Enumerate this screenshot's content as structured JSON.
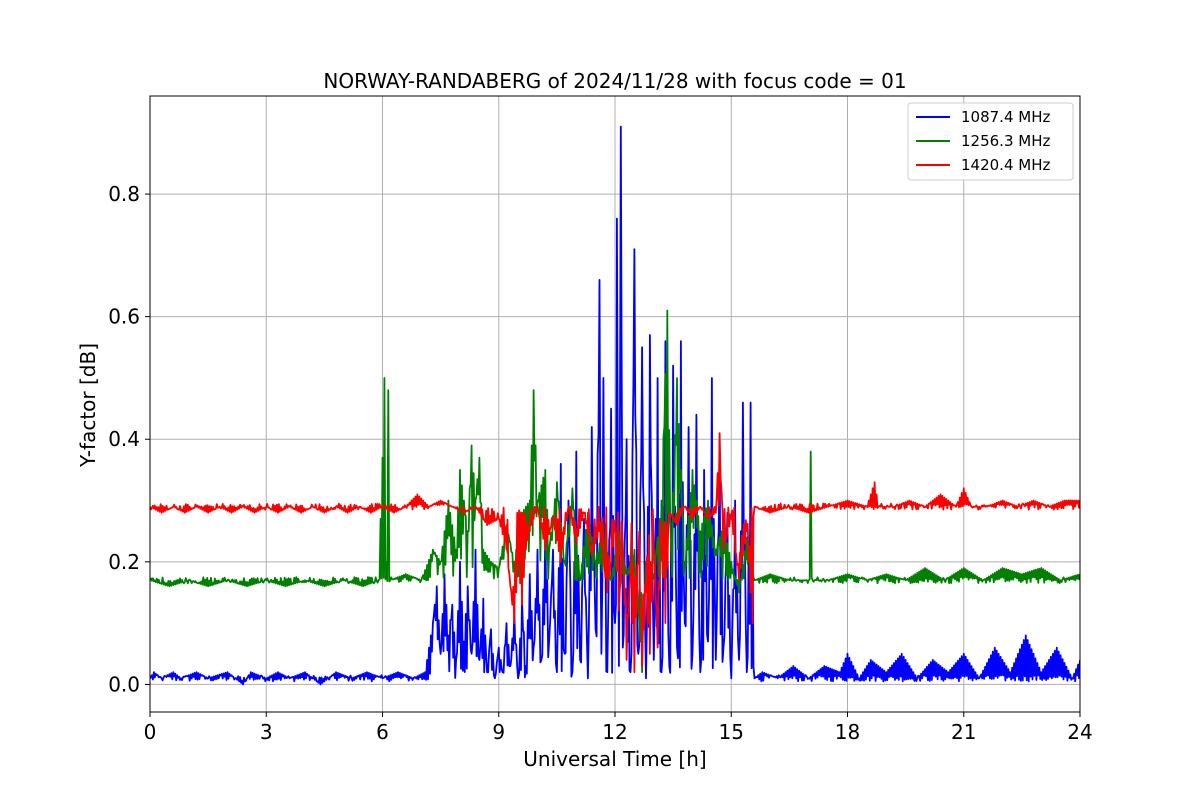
{
  "chart_data": {
    "type": "line",
    "title": "NORWAY-RANDABERG of 2024/11/28 with focus code = 01",
    "xlabel": "Universal Time [h]",
    "ylabel": "Y-factor [dB]",
    "xlim": [
      0,
      24
    ],
    "ylim": [
      -0.045,
      0.96
    ],
    "xticks": [
      0,
      3,
      6,
      9,
      12,
      15,
      18,
      21,
      24
    ],
    "xtick_labels": [
      "0",
      "3",
      "6",
      "9",
      "12",
      "15",
      "18",
      "21",
      "24"
    ],
    "yticks": [
      0.0,
      0.2,
      0.4,
      0.6,
      0.8
    ],
    "ytick_labels": [
      "0.0",
      "0.2",
      "0.4",
      "0.6",
      "0.8"
    ],
    "grid": true,
    "legend_position": "top-right",
    "series": [
      {
        "name": "1087.4 MHz",
        "color": "#0000ff",
        "baseline": 0.01,
        "points": [
          [
            0,
            0.01
          ],
          [
            0.1,
            0.02
          ],
          [
            0.3,
            0.01
          ],
          [
            0.6,
            0.02
          ],
          [
            0.8,
            0.01
          ],
          [
            1.2,
            0.02
          ],
          [
            1.5,
            0.01
          ],
          [
            2.0,
            0.02
          ],
          [
            2.4,
            0.0
          ],
          [
            2.6,
            0.02
          ],
          [
            3.0,
            0.01
          ],
          [
            3.3,
            0.02
          ],
          [
            3.6,
            0.01
          ],
          [
            4.0,
            0.02
          ],
          [
            4.4,
            0.0
          ],
          [
            4.8,
            0.02
          ],
          [
            5.2,
            0.01
          ],
          [
            5.6,
            0.02
          ],
          [
            6.0,
            0.01
          ],
          [
            6.4,
            0.02
          ],
          [
            6.8,
            0.01
          ],
          [
            7.1,
            0.02
          ],
          [
            7.3,
            0.1
          ],
          [
            7.4,
            0.16
          ],
          [
            7.5,
            0.05
          ],
          [
            7.6,
            0.18
          ],
          [
            7.7,
            0.08
          ],
          [
            7.8,
            0.13
          ],
          [
            7.9,
            0.04
          ],
          [
            8.0,
            0.2
          ],
          [
            8.1,
            0.07
          ],
          [
            8.2,
            0.16
          ],
          [
            8.3,
            0.05
          ],
          [
            8.4,
            0.22
          ],
          [
            8.5,
            0.04
          ],
          [
            8.6,
            0.14
          ],
          [
            8.7,
            0.02
          ],
          [
            8.8,
            0.09
          ],
          [
            8.9,
            0.01
          ],
          [
            9.0,
            0.06
          ],
          [
            9.1,
            0.02
          ],
          [
            9.2,
            0.1
          ],
          [
            9.3,
            0.03
          ],
          [
            9.4,
            0.12
          ],
          [
            9.5,
            0.01
          ],
          [
            9.6,
            0.14
          ],
          [
            9.7,
            0.03
          ],
          [
            9.8,
            0.18
          ],
          [
            9.9,
            0.06
          ],
          [
            10.0,
            0.22
          ],
          [
            10.1,
            0.04
          ],
          [
            10.2,
            0.27
          ],
          [
            10.3,
            0.07
          ],
          [
            10.4,
            0.22
          ],
          [
            10.5,
            0.02
          ],
          [
            10.6,
            0.36
          ],
          [
            10.7,
            0.05
          ],
          [
            10.8,
            0.3
          ],
          [
            10.9,
            0.02
          ],
          [
            11.0,
            0.38
          ],
          [
            11.1,
            0.04
          ],
          [
            11.2,
            0.27
          ],
          [
            11.3,
            0.01
          ],
          [
            11.4,
            0.42
          ],
          [
            11.5,
            0.09
          ],
          [
            11.6,
            0.66
          ],
          [
            11.65,
            0.05
          ],
          [
            11.7,
            0.5
          ],
          [
            11.8,
            0.02
          ],
          [
            11.9,
            0.45
          ],
          [
            12.0,
            0.1
          ],
          [
            12.05,
            0.76
          ],
          [
            12.1,
            0.03
          ],
          [
            12.15,
            0.91
          ],
          [
            12.2,
            0.06
          ],
          [
            12.3,
            0.4
          ],
          [
            12.4,
            0.02
          ],
          [
            12.5,
            0.71
          ],
          [
            12.6,
            0.05
          ],
          [
            12.7,
            0.55
          ],
          [
            12.8,
            0.01
          ],
          [
            12.9,
            0.57
          ],
          [
            13.0,
            0.04
          ],
          [
            13.1,
            0.5
          ],
          [
            13.2,
            0.02
          ],
          [
            13.3,
            0.56
          ],
          [
            13.4,
            0.03
          ],
          [
            13.5,
            0.52
          ],
          [
            13.6,
            0.06
          ],
          [
            13.7,
            0.56
          ],
          [
            13.8,
            0.1
          ],
          [
            13.9,
            0.42
          ],
          [
            14.0,
            0.05
          ],
          [
            14.1,
            0.44
          ],
          [
            14.2,
            0.02
          ],
          [
            14.3,
            0.35
          ],
          [
            14.4,
            0.07
          ],
          [
            14.5,
            0.5
          ],
          [
            14.6,
            0.04
          ],
          [
            14.7,
            0.4
          ],
          [
            14.8,
            0.06
          ],
          [
            14.9,
            0.28
          ],
          [
            15.0,
            0.01
          ],
          [
            15.1,
            0.3
          ],
          [
            15.2,
            0.04
          ],
          [
            15.3,
            0.46
          ],
          [
            15.4,
            0.02
          ],
          [
            15.5,
            0.46
          ],
          [
            15.6,
            0.01
          ],
          [
            15.8,
            0.02
          ],
          [
            16.2,
            0.01
          ],
          [
            16.6,
            0.03
          ],
          [
            17.0,
            0.01
          ],
          [
            17.4,
            0.03
          ],
          [
            17.8,
            0.02
          ],
          [
            18.0,
            0.05
          ],
          [
            18.3,
            0.01
          ],
          [
            18.6,
            0.04
          ],
          [
            19.0,
            0.02
          ],
          [
            19.4,
            0.05
          ],
          [
            19.8,
            0.01
          ],
          [
            20.2,
            0.04
          ],
          [
            20.6,
            0.02
          ],
          [
            21.0,
            0.05
          ],
          [
            21.4,
            0.01
          ],
          [
            21.8,
            0.06
          ],
          [
            22.2,
            0.02
          ],
          [
            22.6,
            0.08
          ],
          [
            23.0,
            0.02
          ],
          [
            23.4,
            0.06
          ],
          [
            23.8,
            0.01
          ],
          [
            24.0,
            0.04
          ]
        ]
      },
      {
        "name": "1256.3 MHz",
        "color": "#008000",
        "baseline": 0.17,
        "points": [
          [
            0,
            0.17
          ],
          [
            0.5,
            0.16
          ],
          [
            1.0,
            0.17
          ],
          [
            1.5,
            0.16
          ],
          [
            2.0,
            0.17
          ],
          [
            2.5,
            0.16
          ],
          [
            3.0,
            0.17
          ],
          [
            3.5,
            0.16
          ],
          [
            4.0,
            0.17
          ],
          [
            4.5,
            0.16
          ],
          [
            5.0,
            0.17
          ],
          [
            5.5,
            0.16
          ],
          [
            5.9,
            0.17
          ],
          [
            6.0,
            0.37
          ],
          [
            6.05,
            0.5
          ],
          [
            6.1,
            0.2
          ],
          [
            6.15,
            0.48
          ],
          [
            6.2,
            0.17
          ],
          [
            6.6,
            0.18
          ],
          [
            7.0,
            0.17
          ],
          [
            7.3,
            0.22
          ],
          [
            7.5,
            0.2
          ],
          [
            7.7,
            0.3
          ],
          [
            7.9,
            0.22
          ],
          [
            8.0,
            0.35
          ],
          [
            8.2,
            0.25
          ],
          [
            8.3,
            0.39
          ],
          [
            8.4,
            0.3
          ],
          [
            8.5,
            0.37
          ],
          [
            8.6,
            0.22
          ],
          [
            8.8,
            0.2
          ],
          [
            9.0,
            0.19
          ],
          [
            9.2,
            0.26
          ],
          [
            9.4,
            0.2
          ],
          [
            9.6,
            0.28
          ],
          [
            9.8,
            0.3
          ],
          [
            9.9,
            0.48
          ],
          [
            10.0,
            0.3
          ],
          [
            10.2,
            0.35
          ],
          [
            10.3,
            0.22
          ],
          [
            10.5,
            0.33
          ],
          [
            10.7,
            0.2
          ],
          [
            10.9,
            0.32
          ],
          [
            11.1,
            0.17
          ],
          [
            11.3,
            0.28
          ],
          [
            11.5,
            0.2
          ],
          [
            11.7,
            0.26
          ],
          [
            11.9,
            0.17
          ],
          [
            12.1,
            0.25
          ],
          [
            12.3,
            0.18
          ],
          [
            12.5,
            0.22
          ],
          [
            12.7,
            0.02
          ],
          [
            12.8,
            0.2
          ],
          [
            13.0,
            0.18
          ],
          [
            13.2,
            0.3
          ],
          [
            13.35,
            0.61
          ],
          [
            13.45,
            0.22
          ],
          [
            13.6,
            0.5
          ],
          [
            13.8,
            0.2
          ],
          [
            14.0,
            0.35
          ],
          [
            14.2,
            0.25
          ],
          [
            14.4,
            0.3
          ],
          [
            14.6,
            0.22
          ],
          [
            14.8,
            0.26
          ],
          [
            15.0,
            0.2
          ],
          [
            15.2,
            0.15
          ],
          [
            15.4,
            0.24
          ],
          [
            15.6,
            0.17
          ],
          [
            16.0,
            0.18
          ],
          [
            16.5,
            0.17
          ],
          [
            17.0,
            0.17
          ],
          [
            17.05,
            0.38
          ],
          [
            17.1,
            0.17
          ],
          [
            17.5,
            0.17
          ],
          [
            18.0,
            0.18
          ],
          [
            18.5,
            0.17
          ],
          [
            19.0,
            0.18
          ],
          [
            19.5,
            0.17
          ],
          [
            20.0,
            0.19
          ],
          [
            20.5,
            0.17
          ],
          [
            21.0,
            0.19
          ],
          [
            21.5,
            0.17
          ],
          [
            22.0,
            0.19
          ],
          [
            22.5,
            0.18
          ],
          [
            23.0,
            0.19
          ],
          [
            23.5,
            0.17
          ],
          [
            24.0,
            0.18
          ]
        ]
      },
      {
        "name": "1420.4 MHz",
        "color": "#ff0000",
        "baseline": 0.29,
        "points": [
          [
            0,
            0.29
          ],
          [
            0.3,
            0.28
          ],
          [
            0.6,
            0.29
          ],
          [
            0.9,
            0.28
          ],
          [
            1.2,
            0.29
          ],
          [
            1.5,
            0.28
          ],
          [
            1.8,
            0.29
          ],
          [
            2.1,
            0.28
          ],
          [
            2.4,
            0.29
          ],
          [
            2.7,
            0.28
          ],
          [
            3.0,
            0.29
          ],
          [
            3.3,
            0.28
          ],
          [
            3.6,
            0.29
          ],
          [
            3.9,
            0.28
          ],
          [
            4.2,
            0.29
          ],
          [
            4.5,
            0.28
          ],
          [
            4.8,
            0.29
          ],
          [
            5.1,
            0.28
          ],
          [
            5.4,
            0.29
          ],
          [
            5.7,
            0.28
          ],
          [
            6.0,
            0.29
          ],
          [
            6.3,
            0.28
          ],
          [
            6.6,
            0.29
          ],
          [
            6.9,
            0.31
          ],
          [
            7.2,
            0.29
          ],
          [
            7.5,
            0.3
          ],
          [
            7.8,
            0.29
          ],
          [
            8.1,
            0.28
          ],
          [
            8.4,
            0.29
          ],
          [
            8.7,
            0.26
          ],
          [
            9.0,
            0.27
          ],
          [
            9.2,
            0.22
          ],
          [
            9.3,
            0.16
          ],
          [
            9.4,
            0.1
          ],
          [
            9.5,
            0.2
          ],
          [
            9.6,
            0.13
          ],
          [
            9.7,
            0.22
          ],
          [
            9.8,
            0.25
          ],
          [
            10.0,
            0.29
          ],
          [
            10.2,
            0.22
          ],
          [
            10.4,
            0.27
          ],
          [
            10.6,
            0.2
          ],
          [
            10.8,
            0.29
          ],
          [
            11.0,
            0.23
          ],
          [
            11.2,
            0.28
          ],
          [
            11.4,
            0.21
          ],
          [
            11.6,
            0.25
          ],
          [
            11.8,
            0.15
          ],
          [
            12.0,
            0.25
          ],
          [
            12.1,
            0.12
          ],
          [
            12.2,
            0.22
          ],
          [
            12.3,
            0.04
          ],
          [
            12.4,
            0.18
          ],
          [
            12.5,
            0.02
          ],
          [
            12.6,
            0.2
          ],
          [
            12.7,
            0.03
          ],
          [
            12.8,
            0.15
          ],
          [
            12.9,
            0.05
          ],
          [
            13.0,
            0.22
          ],
          [
            13.1,
            0.06
          ],
          [
            13.2,
            0.25
          ],
          [
            13.3,
            0.1
          ],
          [
            13.4,
            0.28
          ],
          [
            13.6,
            0.26
          ],
          [
            13.8,
            0.29
          ],
          [
            14.0,
            0.27
          ],
          [
            14.2,
            0.29
          ],
          [
            14.4,
            0.27
          ],
          [
            14.6,
            0.28
          ],
          [
            14.7,
            0.41
          ],
          [
            14.8,
            0.22
          ],
          [
            15.0,
            0.27
          ],
          [
            15.2,
            0.17
          ],
          [
            15.4,
            0.25
          ],
          [
            15.55,
            0.1
          ],
          [
            15.6,
            0.29
          ],
          [
            16.0,
            0.28
          ],
          [
            16.5,
            0.29
          ],
          [
            17.0,
            0.28
          ],
          [
            17.5,
            0.29
          ],
          [
            18.0,
            0.3
          ],
          [
            18.5,
            0.29
          ],
          [
            18.7,
            0.33
          ],
          [
            18.8,
            0.29
          ],
          [
            19.2,
            0.29
          ],
          [
            19.6,
            0.3
          ],
          [
            20.0,
            0.29
          ],
          [
            20.4,
            0.31
          ],
          [
            20.8,
            0.29
          ],
          [
            21.0,
            0.32
          ],
          [
            21.2,
            0.29
          ],
          [
            21.6,
            0.29
          ],
          [
            22.0,
            0.3
          ],
          [
            22.4,
            0.29
          ],
          [
            22.8,
            0.3
          ],
          [
            23.2,
            0.29
          ],
          [
            23.6,
            0.3
          ],
          [
            24.0,
            0.3
          ]
        ]
      }
    ]
  }
}
